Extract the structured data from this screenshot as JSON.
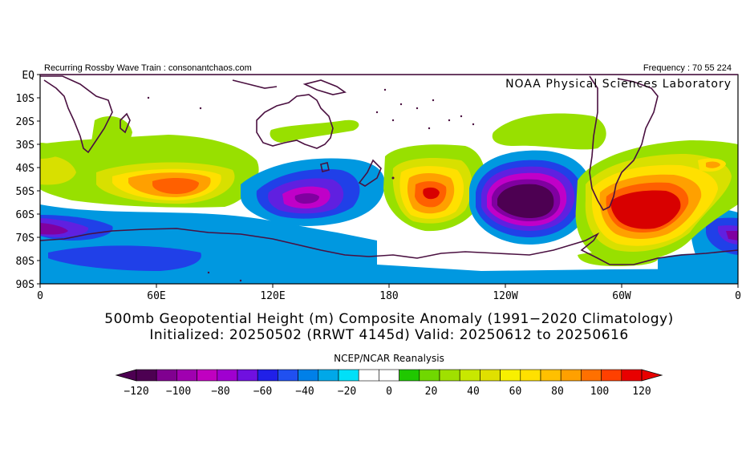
{
  "header": {
    "left_note": "Recurring Rossby Wave Train : consonantchaos.com",
    "right_note": "Frequency : 70 55 224",
    "lab": "NOAA Physical Sciences Laboratory"
  },
  "map": {
    "lat_labels": [
      "EQ",
      "10S",
      "20S",
      "30S",
      "40S",
      "50S",
      "60S",
      "70S",
      "80S",
      "90S"
    ],
    "lon_labels": [
      "0",
      "60E",
      "120E",
      "180",
      "120W",
      "60W",
      "0"
    ],
    "colors": {
      "coast": "#4a1040",
      "neg120": "#4d0052",
      "neg100": "#8000a0",
      "neg80": "#c000c8",
      "neg60": "#6020e0",
      "neg40": "#2040e8",
      "neg20": "#0098e0",
      "pos20": "#98e000",
      "pos40": "#d8e000",
      "pos60": "#ffe000",
      "pos80": "#ffa000",
      "pos100": "#ff6000",
      "pos120": "#d80000"
    }
  },
  "title": {
    "line1": "500mb Geopotential Height (m) Composite Anomaly (1991−2020 Climatology)",
    "line2": "Initialized: 20250502 (RRWT 4145d) Valid: 20250612 to 20250616"
  },
  "colorbar": {
    "source": "NCEP/NCAR Reanalysis",
    "tick_labels": [
      "−120",
      "−100",
      "−80",
      "−60",
      "−40",
      "−20",
      "0",
      "20",
      "40",
      "60",
      "80",
      "100",
      "120"
    ],
    "colors": [
      "#4d0052",
      "#800090",
      "#a000b0",
      "#c000c0",
      "#a000d0",
      "#7010e0",
      "#2020e8",
      "#2050f0",
      "#0080e8",
      "#00a8e8",
      "#00e0f8",
      "#ffffff",
      "#ffffff",
      "#20c800",
      "#70d800",
      "#a0e000",
      "#c8e800",
      "#e0e000",
      "#f8f000",
      "#ffe000",
      "#ffc000",
      "#ffa000",
      "#ff7000",
      "#ff4000",
      "#e80000"
    ]
  }
}
